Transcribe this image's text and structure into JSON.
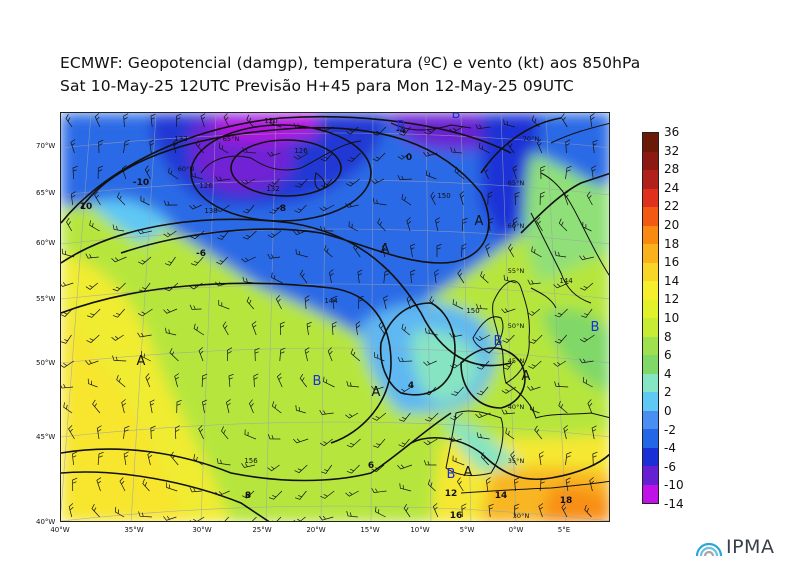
{
  "header": {
    "line1": "ECMWF:  Geopotencial (damgp), temperatura (ºC) e vento (kt) aos 850hPa",
    "line2": "Sat 10-May-25 12UTC Previsão H+45 para Mon 12-May-25 09UTC"
  },
  "map": {
    "lon_labels": [
      "40°W",
      "35°W",
      "30°W",
      "25°W",
      "20°W",
      "15°W",
      "10°W",
      "5°W",
      "0°W",
      "5°E"
    ],
    "lat_labels": [
      "70°W",
      "65°W",
      "60°W",
      "55°W",
      "50°W",
      "45°W",
      "40°W"
    ],
    "pressure_labels": [
      "A",
      "A",
      "A",
      "A",
      "A",
      "A",
      "B",
      "B",
      "B",
      "B",
      "B",
      "B"
    ],
    "contour_labels": [
      "120",
      "126",
      "132",
      "138",
      "144",
      "150",
      "156",
      "144",
      "150",
      "132",
      "126"
    ],
    "isotherm_labels": [
      "-10",
      "-8",
      "-6",
      "-4",
      "0",
      "4",
      "6",
      "8",
      "10",
      "12",
      "14",
      "16",
      "18"
    ],
    "grid_labels": [
      "70°N",
      "65°N",
      "60°N",
      "55°N",
      "50°N",
      "45°N",
      "40°N",
      "35°N",
      "30°N"
    ]
  },
  "colorbar": {
    "labels": [
      "36",
      "32",
      "28",
      "24",
      "22",
      "20",
      "18",
      "16",
      "14",
      "12",
      "10",
      "8",
      "6",
      "4",
      "2",
      "0",
      "-2",
      "-4",
      "-6",
      "-10",
      "-14"
    ],
    "colors": [
      "#6b1a08",
      "#8c1a12",
      "#b1201a",
      "#e0301e",
      "#f25a14",
      "#f88a12",
      "#f9b21c",
      "#f8d628",
      "#f6ef2e",
      "#e3f12a",
      "#c8ec34",
      "#9fe04e",
      "#7fd868",
      "#86e6c4",
      "#5fc8f4",
      "#4a8ef2",
      "#2466e8",
      "#1a2fd6",
      "#6620d2",
      "#c012e8"
    ]
  },
  "logo": {
    "text": "IPMA"
  }
}
